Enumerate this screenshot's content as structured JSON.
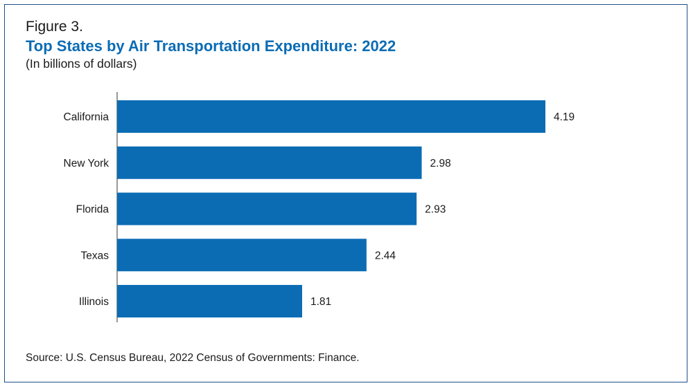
{
  "figure_label": "Figure 3.",
  "title": "Top States by Air Transportation Expenditure: 2022",
  "subtitle": "(In billions of dollars)",
  "source": "Source: U.S. Census Bureau, 2022 Census of Governments: Finance.",
  "colors": {
    "bar": "#0b6cb4",
    "title": "#0b6cb4",
    "border": "#1f4e8c",
    "axis": "#333333"
  },
  "chart_data": {
    "type": "bar",
    "orientation": "horizontal",
    "categories": [
      "California",
      "New York",
      "Florida",
      "Texas",
      "Illinois"
    ],
    "values": [
      4.19,
      2.98,
      2.93,
      2.44,
      1.81
    ],
    "data_labels": [
      "4.19",
      "2.98",
      "2.93",
      "2.44",
      "1.81"
    ],
    "title": "Top States by Air Transportation Expenditure: 2022",
    "xlabel": "",
    "ylabel": "",
    "xlim": [
      0,
      4.19
    ],
    "grid": false,
    "legend": "none"
  }
}
